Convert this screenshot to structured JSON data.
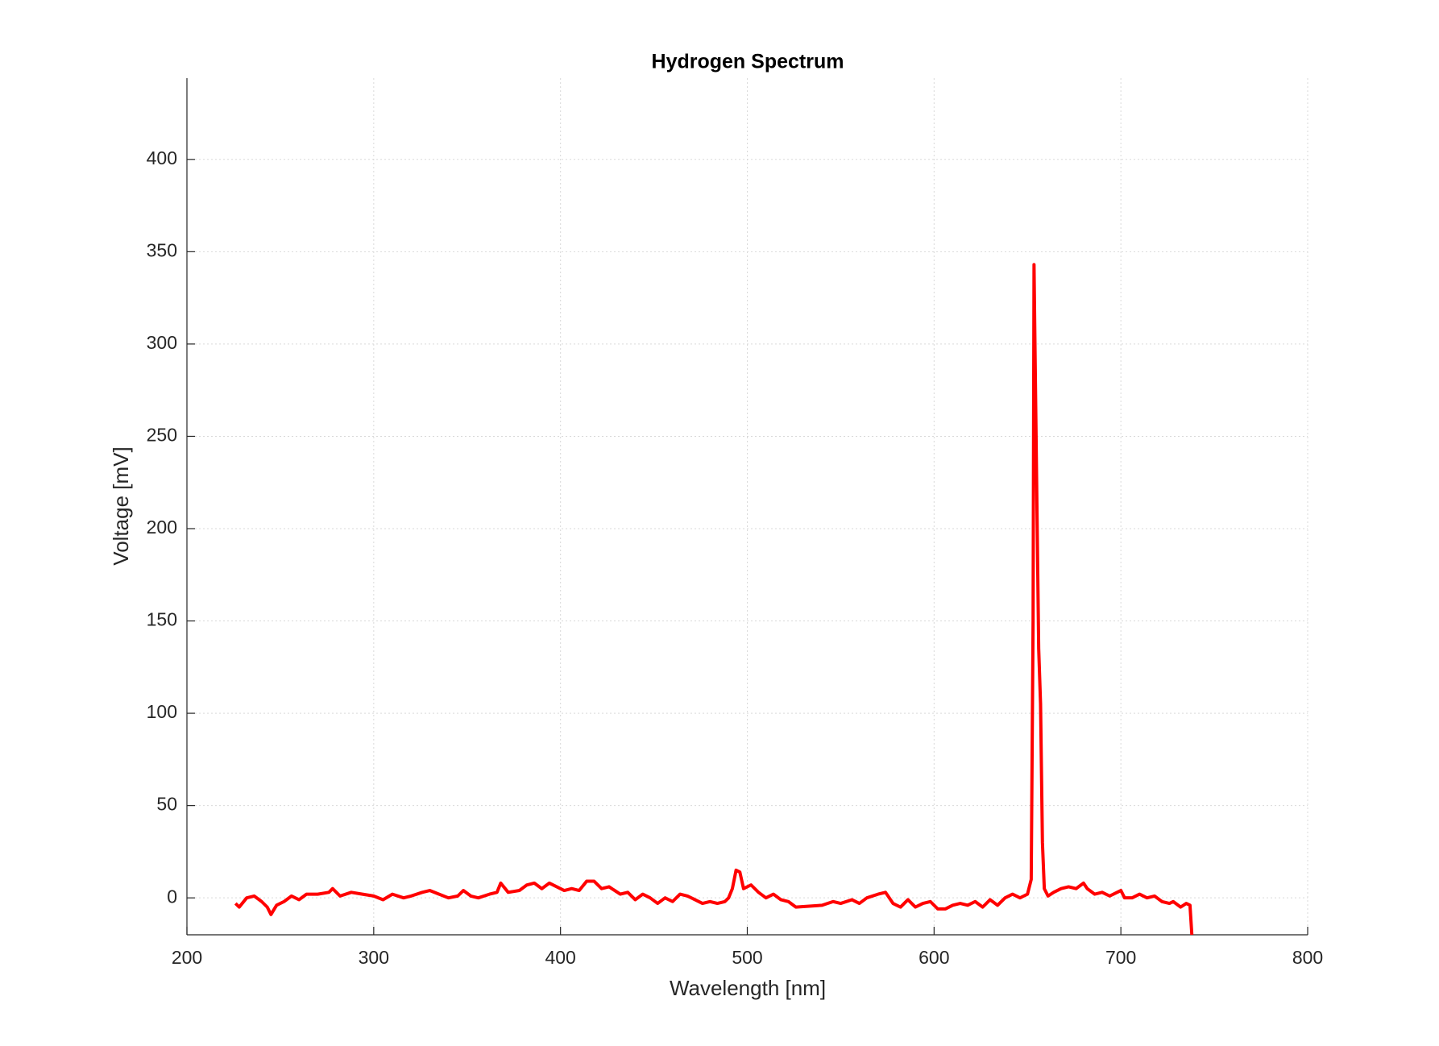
{
  "chart_data": {
    "type": "line",
    "title": "Hydrogen Spectrum",
    "x_label": "Wavelength [nm]",
    "y_label": "Voltage [mV]",
    "xlim": [
      200,
      800
    ],
    "xticks": [
      200,
      300,
      400,
      500,
      600,
      700,
      800
    ],
    "ylim": [
      -20,
      444
    ],
    "yticks": [
      0,
      50,
      100,
      150,
      200,
      250,
      300,
      350,
      400
    ],
    "grid": true,
    "series": [
      {
        "color": "#ff0000",
        "x": [
          226,
          228,
          232,
          236,
          240,
          243,
          245,
          248,
          252,
          256,
          260,
          264,
          270,
          276,
          278,
          282,
          288,
          294,
          300,
          305,
          310,
          316,
          320,
          326,
          330,
          335,
          340,
          345,
          348,
          352,
          356,
          362,
          366,
          368,
          372,
          378,
          382,
          386,
          390,
          394,
          398,
          402,
          406,
          410,
          414,
          418,
          422,
          426,
          432,
          436,
          440,
          444,
          448,
          452,
          456,
          460,
          464,
          468,
          472,
          476,
          480,
          484,
          488,
          490,
          492,
          494,
          496,
          498,
          502,
          506,
          510,
          514,
          518,
          522,
          526,
          540,
          546,
          550,
          556,
          560,
          564,
          570,
          574,
          578,
          582,
          586,
          590,
          594,
          598,
          602,
          606,
          610,
          614,
          618,
          622,
          626,
          630,
          634,
          638,
          642,
          646,
          650,
          652,
          653,
          653.5,
          654,
          656,
          657,
          658,
          659,
          661,
          664,
          668,
          672,
          676,
          680,
          682,
          686,
          690,
          694,
          698,
          700,
          702,
          706,
          710,
          714,
          718,
          722,
          726,
          728,
          732,
          735,
          737,
          738
        ],
        "values": [
          -3,
          -5,
          0,
          1,
          -2,
          -5,
          -9,
          -4,
          -2,
          1,
          -1,
          2,
          2,
          3,
          5,
          1,
          3,
          2,
          1,
          -1,
          2,
          0,
          1,
          3,
          4,
          2,
          0,
          1,
          4,
          1,
          0,
          2,
          3,
          8,
          3,
          4,
          7,
          8,
          5,
          8,
          6,
          4,
          5,
          4,
          9,
          9,
          5,
          6,
          2,
          3,
          -1,
          2,
          0,
          -3,
          0,
          -2,
          2,
          1,
          -1,
          -3,
          -2,
          -3,
          -2,
          0,
          5,
          15,
          14,
          5,
          7,
          3,
          0,
          2,
          -1,
          -2,
          -5,
          -4,
          -2,
          -3,
          -1,
          -3,
          0,
          2,
          3,
          -3,
          -5,
          -1,
          -5,
          -3,
          -2,
          -6,
          -6,
          -4,
          -3,
          -4,
          -2,
          -5,
          -1,
          -4,
          0,
          2,
          0,
          2,
          10,
          150,
          343,
          300,
          135,
          105,
          30,
          5,
          1,
          3,
          5,
          6,
          5,
          8,
          5,
          2,
          3,
          1,
          3,
          4,
          0,
          0,
          2,
          0,
          1,
          -2,
          -3,
          -2,
          -5,
          -3,
          -4,
          -20
        ]
      }
    ]
  }
}
